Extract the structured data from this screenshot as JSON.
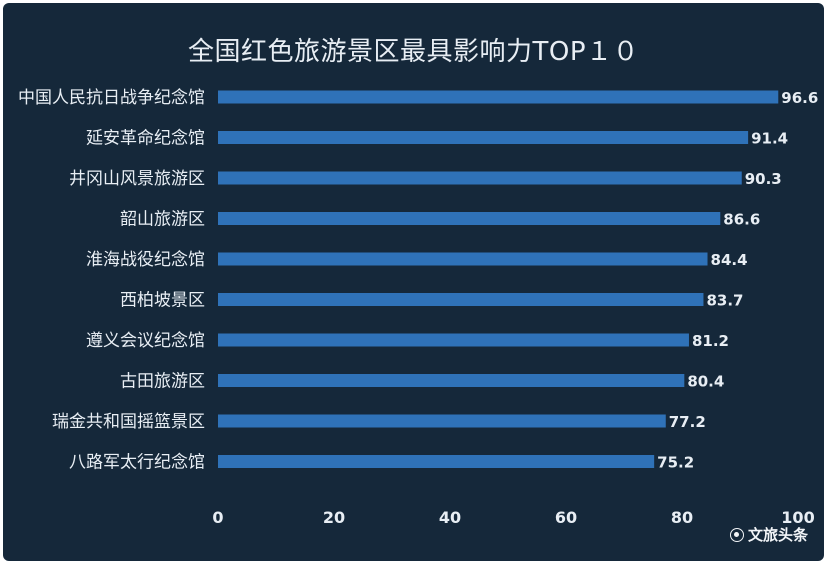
{
  "chart_data": {
    "type": "bar",
    "orientation": "horizontal",
    "title": "全国红色旅游景区最具影响力TOP１０",
    "categories": [
      "中国人民抗日战争纪念馆",
      "延安革命纪念馆",
      "井冈山风景旅游区",
      "韶山旅游区",
      "淮海战役纪念馆",
      "西柏坡景区",
      "遵义会议纪念馆",
      "古田旅游区",
      "瑞金共和国摇篮景区",
      "八路军太行纪念馆"
    ],
    "values": [
      96.6,
      91.4,
      90.3,
      86.6,
      84.4,
      83.7,
      81.2,
      80.4,
      77.2,
      75.2
    ],
    "value_labels": [
      "96.6",
      "91.4",
      "90.3",
      "86.6",
      "84.4",
      "83.7",
      "81.2",
      "80.4",
      "77.2",
      "75.2"
    ],
    "xlim": [
      0,
      100
    ],
    "xticks": [
      0,
      20,
      40,
      60,
      80,
      100
    ],
    "xtick_labels": [
      "0",
      "20",
      "40",
      "60",
      "80",
      "100"
    ],
    "grid": false,
    "legend": "none",
    "colors": {
      "background": "#15283a",
      "bar": "#2f72b8",
      "text": "#e8eef4"
    }
  },
  "watermark": {
    "text": "文旅头条",
    "icon": "circle-logo-icon"
  }
}
